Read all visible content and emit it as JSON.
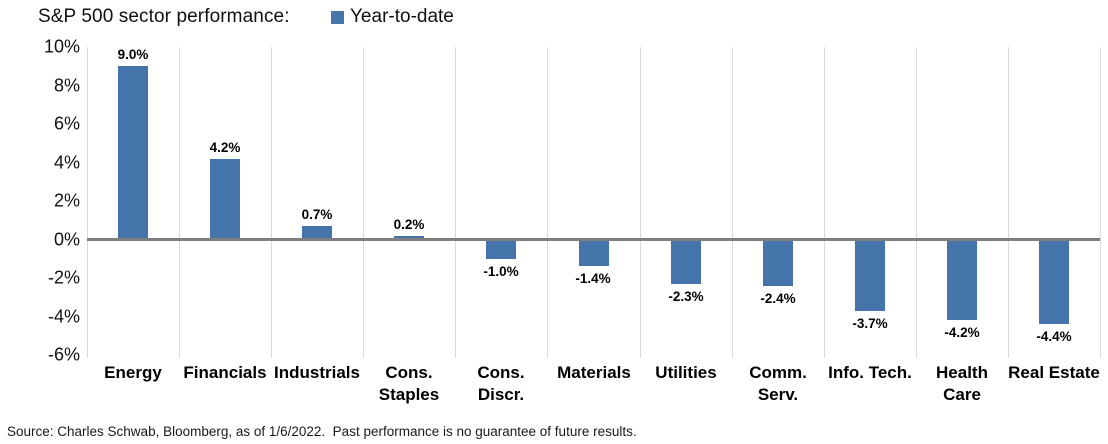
{
  "header": {
    "title": "S&P 500 sector performance:",
    "legend": {
      "label": "Year-to-date",
      "marker_color": "#4474aa"
    }
  },
  "chart_data": {
    "type": "bar",
    "title": "S&P 500 sector performance:",
    "series_name": "Year-to-date",
    "categories": [
      "Energy",
      "Financials",
      "Industrials",
      "Cons. Staples",
      "Cons. Discr.",
      "Materials",
      "Utilities",
      "Comm. Serv.",
      "Info. Tech.",
      "Health Care",
      "Real Estate"
    ],
    "values": [
      9.0,
      4.2,
      0.7,
      0.2,
      -1.0,
      -1.4,
      -2.3,
      -2.4,
      -3.7,
      -4.2,
      -4.4
    ],
    "value_labels": [
      "9.0%",
      "4.2%",
      "0.7%",
      "0.2%",
      "-1.0%",
      "-1.4%",
      "-2.3%",
      "-2.4%",
      "-3.7%",
      "-4.2%",
      "-4.4%"
    ],
    "xlabel": "",
    "ylabel": "",
    "ylim": [
      -6,
      10
    ],
    "ytick_step": 2,
    "ytick_labels": [
      "10%",
      "8%",
      "6%",
      "4%",
      "2%",
      "0%",
      "-2%",
      "-4%",
      "-6%"
    ],
    "bar_color": "#4474aa",
    "grid": "vertical-only",
    "gridline_color": "#d9d9d9",
    "zero_line_color": "#7f7f7f",
    "legend_position": "top"
  },
  "footer": {
    "source": "Source: Charles Schwab, Bloomberg, as of 1/6/2022.  Past performance is no guarantee of future results."
  }
}
